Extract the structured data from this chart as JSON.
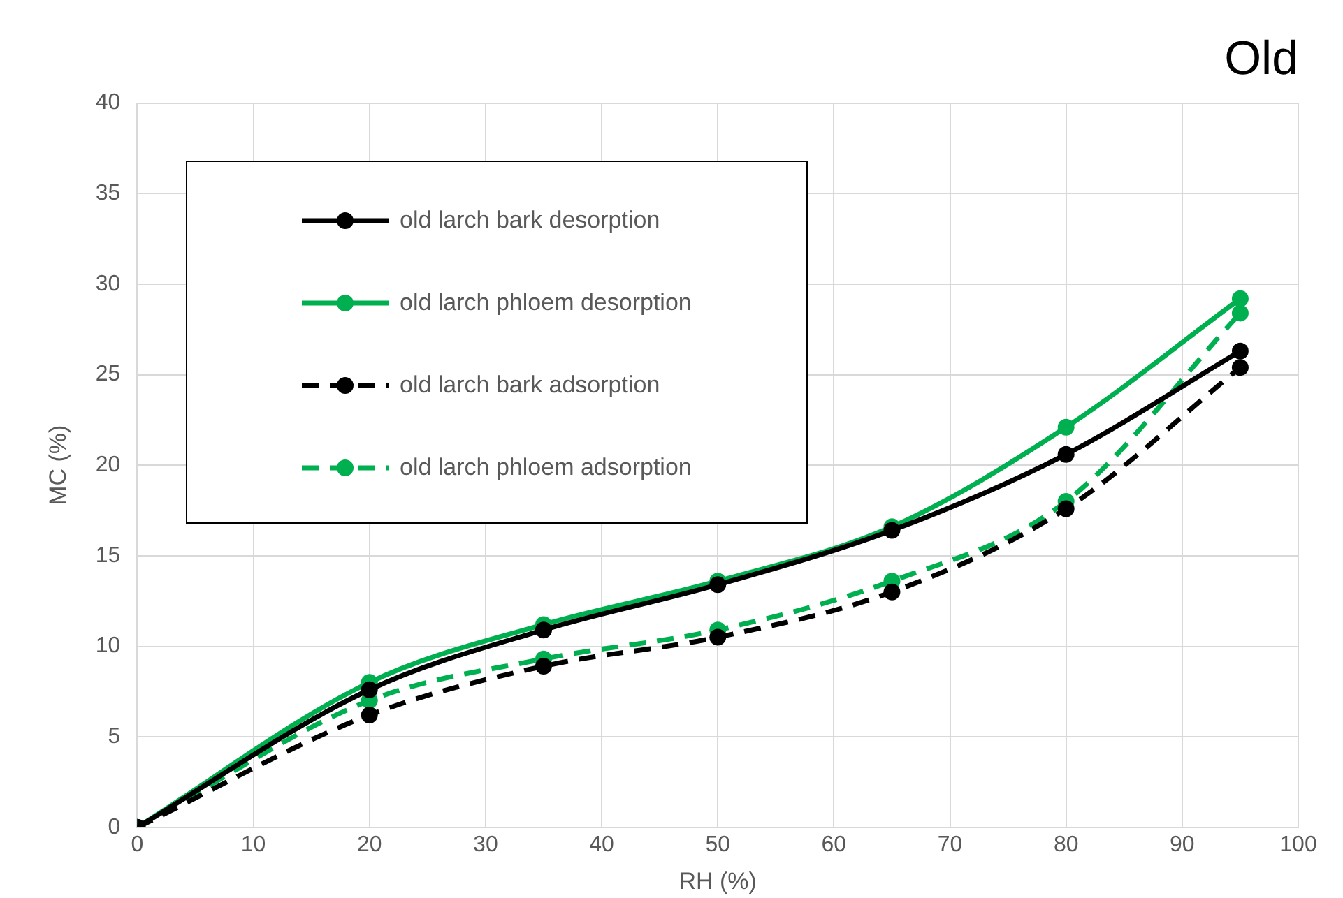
{
  "chart_data": {
    "type": "line",
    "title": "Old",
    "xlabel": "RH (%)",
    "ylabel": "MC (%)",
    "x": [
      0,
      20,
      35,
      50,
      65,
      80,
      95
    ],
    "series": [
      {
        "name": "old larch bark desorption",
        "color": "#000000",
        "line_style": "solid",
        "values": [
          0,
          7.6,
          10.9,
          13.4,
          16.4,
          20.6,
          26.3
        ]
      },
      {
        "name": "old larch phloem desorption",
        "color": "#00b050",
        "line_style": "solid",
        "values": [
          0,
          8.0,
          11.2,
          13.6,
          16.6,
          22.1,
          29.2
        ]
      },
      {
        "name": "old larch bark adsorption",
        "color": "#000000",
        "line_style": "dashed",
        "values": [
          0,
          6.2,
          8.9,
          10.5,
          13.0,
          17.6,
          25.4
        ]
      },
      {
        "name": "old larch phloem adsorption",
        "color": "#00b050",
        "line_style": "dashed",
        "values": [
          0,
          7.0,
          9.3,
          10.9,
          13.6,
          18.0,
          28.4
        ]
      }
    ],
    "xlim": [
      0,
      100
    ],
    "xticks": [
      0,
      10,
      20,
      30,
      40,
      50,
      60,
      70,
      80,
      90,
      100
    ],
    "ylim": [
      0,
      40
    ],
    "yticks": [
      0,
      5,
      10,
      15,
      20,
      25,
      30,
      35,
      40
    ],
    "grid": true,
    "legend": "top left",
    "marker": "circle"
  }
}
